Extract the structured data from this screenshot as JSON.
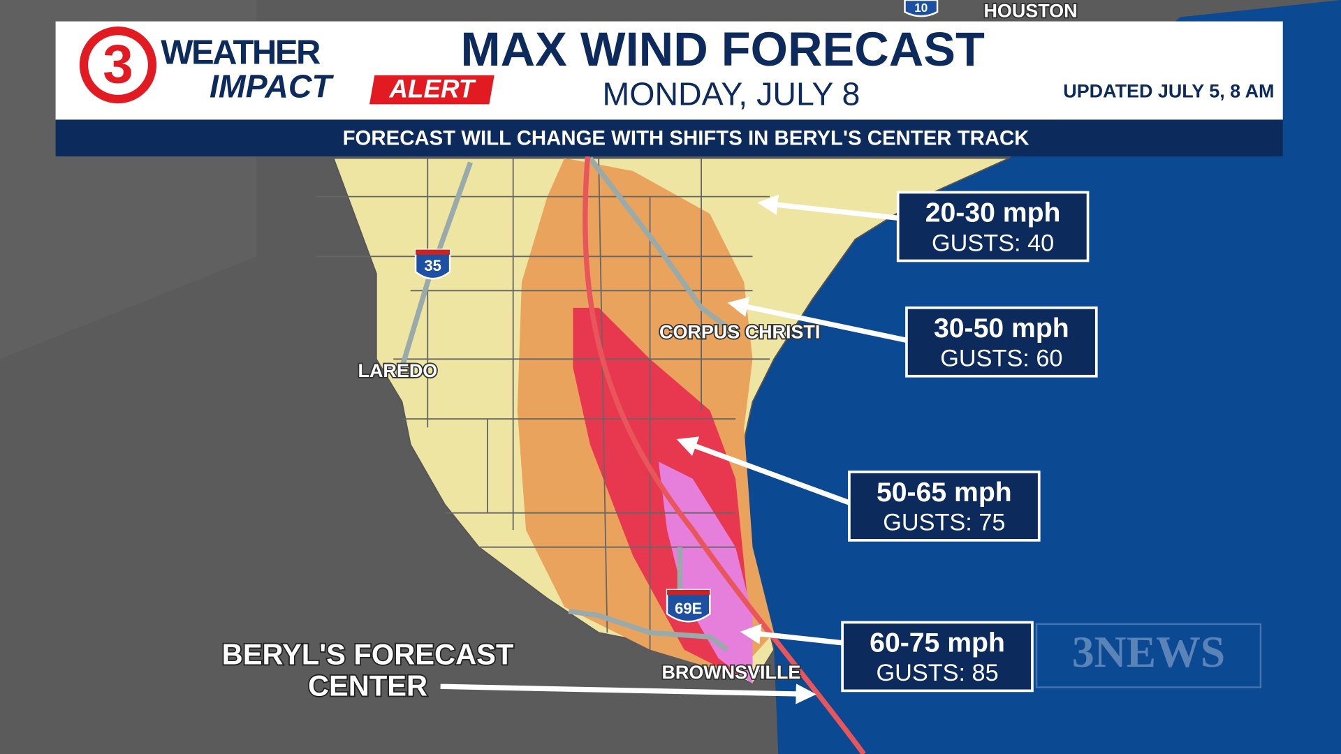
{
  "header": {
    "logo_number": "3",
    "logo_weather": "WEATHER",
    "logo_impact": "IMPACT",
    "logo_alert": "ALERT",
    "title": "MAX WIND FORECAST",
    "subtitle": "MONDAY, JULY 8",
    "updated": "UPDATED JULY 5, 8 AM"
  },
  "banner": "FORECAST WILL CHANGE WITH SHIFTS IN BERYL'S CENTER TRACK",
  "map_labels": {
    "houston": "HOUSTON",
    "corpus_christi": "CORPUS CHRISTI",
    "laredo": "LAREDO",
    "brownsville": "BROWNSVILLE",
    "i10": "10",
    "i35": "35",
    "i69e": "69E"
  },
  "legend": [
    {
      "speed": "20-30 mph",
      "gusts": "GUSTS: 40"
    },
    {
      "speed": "30-50 mph",
      "gusts": "GUSTS: 60"
    },
    {
      "speed": "50-65 mph",
      "gusts": "GUSTS: 75"
    },
    {
      "speed": "60-75 mph",
      "gusts": "GUSTS: 85"
    }
  ],
  "center_label": [
    "BERYL'S FORECAST",
    "CENTER"
  ],
  "watermark": "3NEWS"
}
